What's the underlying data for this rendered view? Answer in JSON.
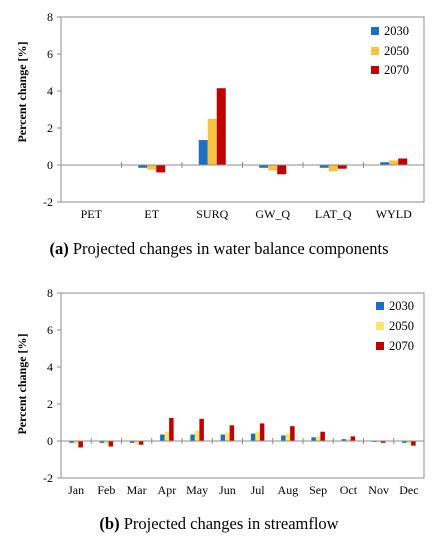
{
  "chart_data": [
    {
      "type": "bar",
      "ylabel": "Percent change [%]",
      "ylim": [
        -2,
        8
      ],
      "yticks": [
        -2,
        0,
        2,
        4,
        6,
        8
      ],
      "categories": [
        "PET",
        "ET",
        "SURQ",
        "GW_Q",
        "LAT_Q",
        "WYLD"
      ],
      "series": [
        {
          "name": "2030",
          "color": "#1f6fc0",
          "values": [
            0.0,
            -0.15,
            1.35,
            -0.15,
            -0.15,
            0.15
          ]
        },
        {
          "name": "2050",
          "color": "#f5c242",
          "values": [
            0.0,
            -0.25,
            2.5,
            -0.3,
            -0.35,
            0.25
          ]
        },
        {
          "name": "2070",
          "color": "#c00000",
          "values": [
            0.0,
            -0.4,
            4.15,
            -0.5,
            -0.2,
            0.35
          ]
        }
      ],
      "caption_label": "(a)",
      "caption_text": " Projected changes in water balance components"
    },
    {
      "type": "bar",
      "ylabel": "Percent change [%]",
      "ylim": [
        -2,
        8
      ],
      "yticks": [
        -2,
        0,
        2,
        4,
        6,
        8
      ],
      "categories": [
        "Jan",
        "Feb",
        "Mar",
        "Apr",
        "May",
        "Jun",
        "Jul",
        "Aug",
        "Sep",
        "Oct",
        "Nov",
        "Dec"
      ],
      "series": [
        {
          "name": "2030",
          "color": "#1f6fc0",
          "values": [
            -0.1,
            -0.1,
            -0.1,
            0.35,
            0.35,
            0.35,
            0.4,
            0.3,
            0.2,
            0.1,
            -0.05,
            -0.1
          ]
        },
        {
          "name": "2050",
          "color": "#ffe66b",
          "values": [
            -0.15,
            -0.15,
            -0.15,
            0.5,
            0.55,
            0.45,
            0.5,
            0.4,
            0.25,
            0.1,
            -0.05,
            -0.15
          ]
        },
        {
          "name": "2070",
          "color": "#c00000",
          "values": [
            -0.35,
            -0.3,
            -0.2,
            1.25,
            1.2,
            0.85,
            0.95,
            0.8,
            0.5,
            0.25,
            -0.1,
            -0.25
          ]
        }
      ],
      "caption_label": "(b)",
      "caption_text": " Projected changes in streamflow"
    }
  ]
}
